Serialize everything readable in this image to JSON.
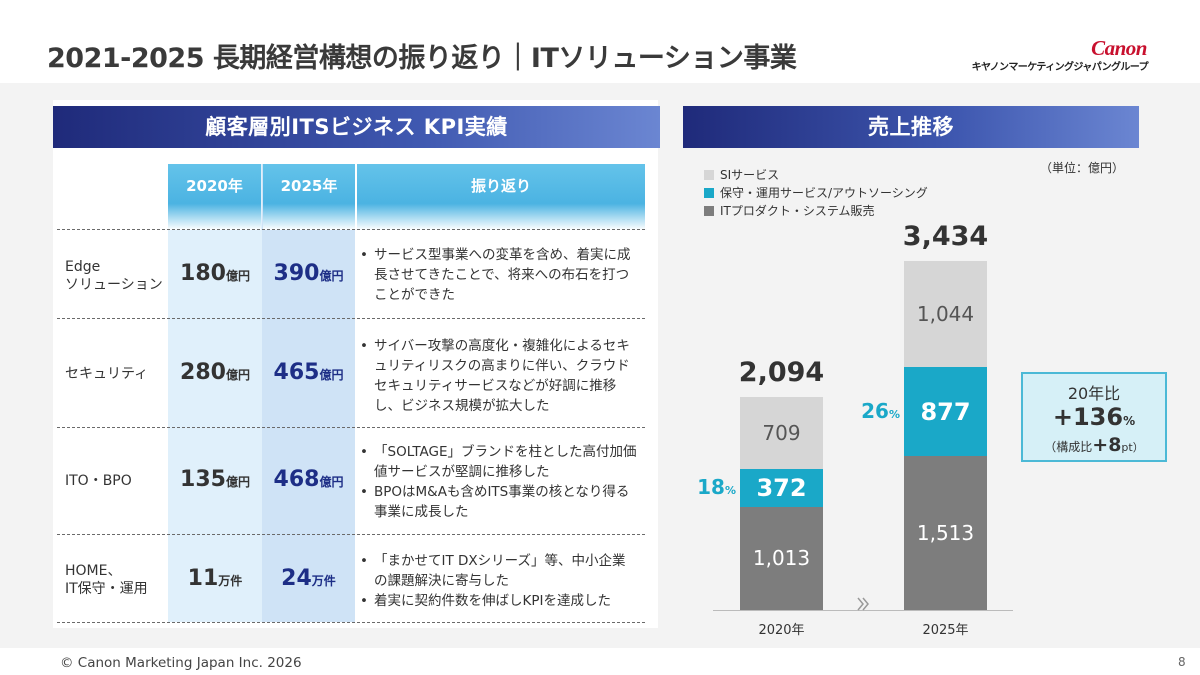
{
  "header": {
    "title": "2021-2025 長期経営構想の振り返り｜ITソリューション事業",
    "logo_text": "Canon",
    "logo_subtitle": "キヤノンマーケティングジャパングループ"
  },
  "kpi_panel": {
    "title": "顧客層別ITSビジネス KPI実績",
    "columns": [
      "2020年",
      "2025年",
      "振り返り"
    ],
    "rows": [
      {
        "label_lines": [
          "Edge",
          "ソリューション"
        ],
        "v2020": "180",
        "u2020": "億円",
        "v2025": "390",
        "u2025": "億円",
        "review": [
          "サービス型事業への変革を含め、着実に成長させてきたことで、将来への布石を打つことができた"
        ]
      },
      {
        "label_lines": [
          "セキュリティ"
        ],
        "v2020": "280",
        "u2020": "億円",
        "v2025": "465",
        "u2025": "億円",
        "review": [
          "サイバー攻撃の高度化・複雑化によるセキュリティリスクの高まりに伴い、クラウドセキュリティサービスなどが好調に推移し、ビジネス規模が拡大した"
        ]
      },
      {
        "label_lines": [
          "ITO・BPO"
        ],
        "v2020": "135",
        "u2020": "億円",
        "v2025": "468",
        "u2025": "億円",
        "review": [
          "「SOLTAGE」ブランドを柱とした高付加価値サービスが堅調に推移した",
          "BPOはM&Aも含めITS事業の核となり得る事業に成長した"
        ]
      },
      {
        "label_lines": [
          "HOME、",
          "IT保守・運用"
        ],
        "v2020": "11",
        "u2020": "万件",
        "v2025": "24",
        "u2025": "万件",
        "review": [
          "「まかせてIT DXシリーズ」等、中小企業の課題解決に寄与した",
          "着実に契約件数を伸ばしKPIを達成した"
        ]
      }
    ]
  },
  "sales_panel": {
    "title": "売上推移",
    "unit_note": "（単位：億円）",
    "growth_box": {
      "line1": "20年比",
      "line2": "+136",
      "line2_unit": "%",
      "line3_prefix": "（構成比",
      "line3_value": "+8",
      "line3_unit": "pt）"
    },
    "pct_unit": "%"
  },
  "chart_data": {
    "type": "bar",
    "stacked": true,
    "categories": [
      "2020年",
      "2025年"
    ],
    "series": [
      {
        "name": "ITプロダクト・システム販売",
        "values": [
          1013,
          1513
        ],
        "labels": [
          "1,013",
          "1,513"
        ],
        "color": "#7d7d7d"
      },
      {
        "name": "保守・運用サービス/アウトソーシング",
        "values": [
          372,
          877
        ],
        "labels": [
          "372",
          "877"
        ],
        "color": "#1aa8c8"
      },
      {
        "name": "SIサービス",
        "values": [
          709,
          1044
        ],
        "labels": [
          "709",
          "1,044"
        ],
        "color": "#d6d6d6"
      }
    ],
    "totals": [
      "2,094",
      "3,434"
    ],
    "share_labels": [
      "18",
      "26"
    ],
    "legend_order": [
      "SIサービス",
      "保守・運用サービス/アウトソーシング",
      "ITプロダクト・システム販売"
    ],
    "legend_position": "top-left"
  },
  "footer": {
    "copyright": "© Canon Marketing Japan Inc. 2026",
    "page_number": "8"
  },
  "colors": {
    "header_dark": "#1f2a7a",
    "header_light": "#6b86d2",
    "accent_cyan": "#1aa8c8",
    "navy_value": "#1d2e86",
    "logo_red": "#c8102e"
  }
}
